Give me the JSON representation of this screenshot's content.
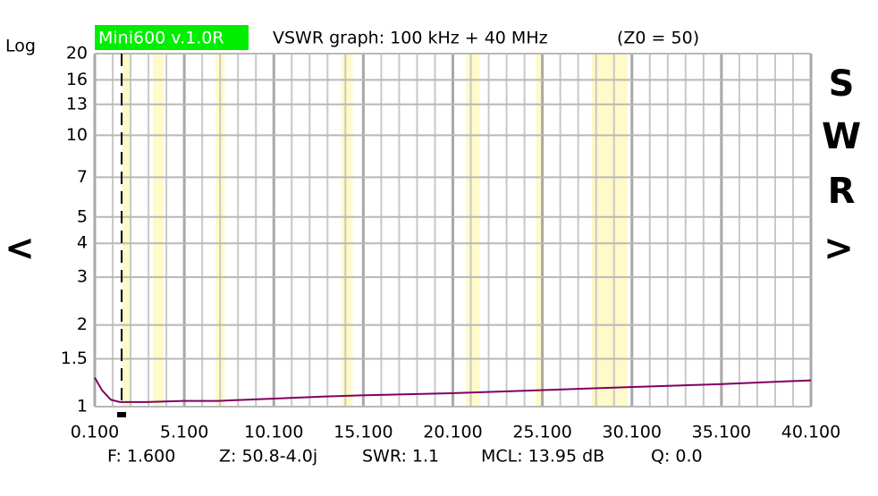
{
  "chart_data": {
    "type": "line",
    "scale_label": "Log",
    "badge": "Mini600 v.1.0R",
    "title": "VSWR graph: 100 kHz + 40 MHz",
    "subtitle": "(Z0 = 50)",
    "left_nav": "<",
    "right_nav": ">",
    "side_label": [
      "S",
      "W",
      "R"
    ],
    "log_y": true,
    "grid": true,
    "xlim": [
      0.1,
      40.1
    ],
    "ylim": [
      1,
      20
    ],
    "xticks": [
      {
        "value": 0.1,
        "label": "0.100"
      },
      {
        "value": 5.1,
        "label": "5.100"
      },
      {
        "value": 10.1,
        "label": "10.100"
      },
      {
        "value": 15.1,
        "label": "15.100"
      },
      {
        "value": 20.1,
        "label": "20.100"
      },
      {
        "value": 25.1,
        "label": "25.100"
      },
      {
        "value": 30.1,
        "label": "30.100"
      },
      {
        "value": 35.1,
        "label": "35.100"
      },
      {
        "value": 40.1,
        "label": "40.100"
      }
    ],
    "yticks": [
      1,
      1.5,
      2,
      3,
      4,
      5,
      7,
      10,
      13,
      16,
      20
    ],
    "bands": [
      [
        1.8,
        2.0
      ],
      [
        3.5,
        3.8
      ],
      [
        7.0,
        7.2
      ],
      [
        14.0,
        14.35
      ],
      [
        21.0,
        21.45
      ],
      [
        24.89,
        24.99
      ],
      [
        28.0,
        29.7
      ]
    ],
    "band_color": "#fffac8",
    "marker_x": 1.6,
    "x": [
      0.1,
      0.5,
      1,
      1.5,
      2,
      3,
      5,
      7,
      10,
      13,
      15,
      20,
      25,
      30,
      35,
      40.1
    ],
    "series": [
      {
        "color": "#800060",
        "values": [
          1.28,
          1.15,
          1.06,
          1.04,
          1.04,
          1.04,
          1.05,
          1.05,
          1.07,
          1.09,
          1.1,
          1.12,
          1.15,
          1.18,
          1.21,
          1.25
        ]
      }
    ],
    "status": [
      "F: 1.600",
      "Z: 50.8-4.0j",
      "SWR: 1.1",
      "MCL: 13.95 dB",
      "Q: 0.0"
    ]
  }
}
